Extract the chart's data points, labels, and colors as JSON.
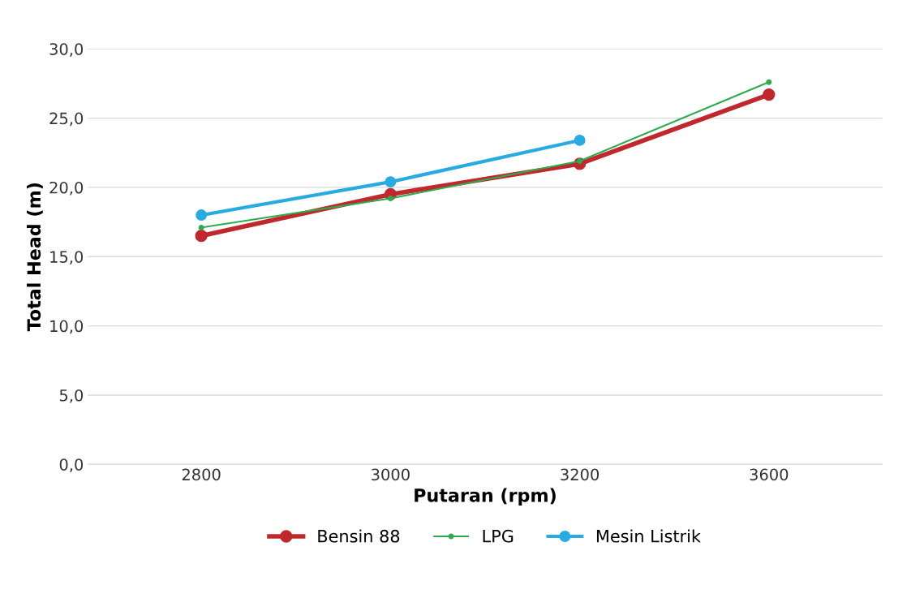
{
  "chart_data": {
    "type": "line",
    "xlabel": "Putaran (rpm)",
    "ylabel": "Total Head (m)",
    "categories": [
      "2800",
      "3000",
      "3200",
      "3600"
    ],
    "series": [
      {
        "name": "Bensin 88",
        "color": "#c0282d",
        "values": [
          16.5,
          19.5,
          21.7,
          26.7
        ]
      },
      {
        "name": "LPG",
        "color": "#2eaa4f",
        "values": [
          17.1,
          19.2,
          21.9,
          27.6
        ]
      },
      {
        "name": "Mesin Listrik",
        "color": "#29abe2",
        "values": [
          18.0,
          20.4,
          23.4,
          null
        ]
      }
    ],
    "ylim": [
      0,
      30
    ],
    "yticks": [
      {
        "value": 0,
        "label": "0,0"
      },
      {
        "value": 5,
        "label": "5,0"
      },
      {
        "value": 10,
        "label": "10,0"
      },
      {
        "value": 15,
        "label": "15,0"
      },
      {
        "value": 20,
        "label": "20,0"
      },
      {
        "value": 25,
        "label": "25,0"
      },
      {
        "value": 30,
        "label": "30,0"
      }
    ],
    "grid": "y",
    "legend": "bottom",
    "marker": "circle",
    "line_style": "solid"
  }
}
